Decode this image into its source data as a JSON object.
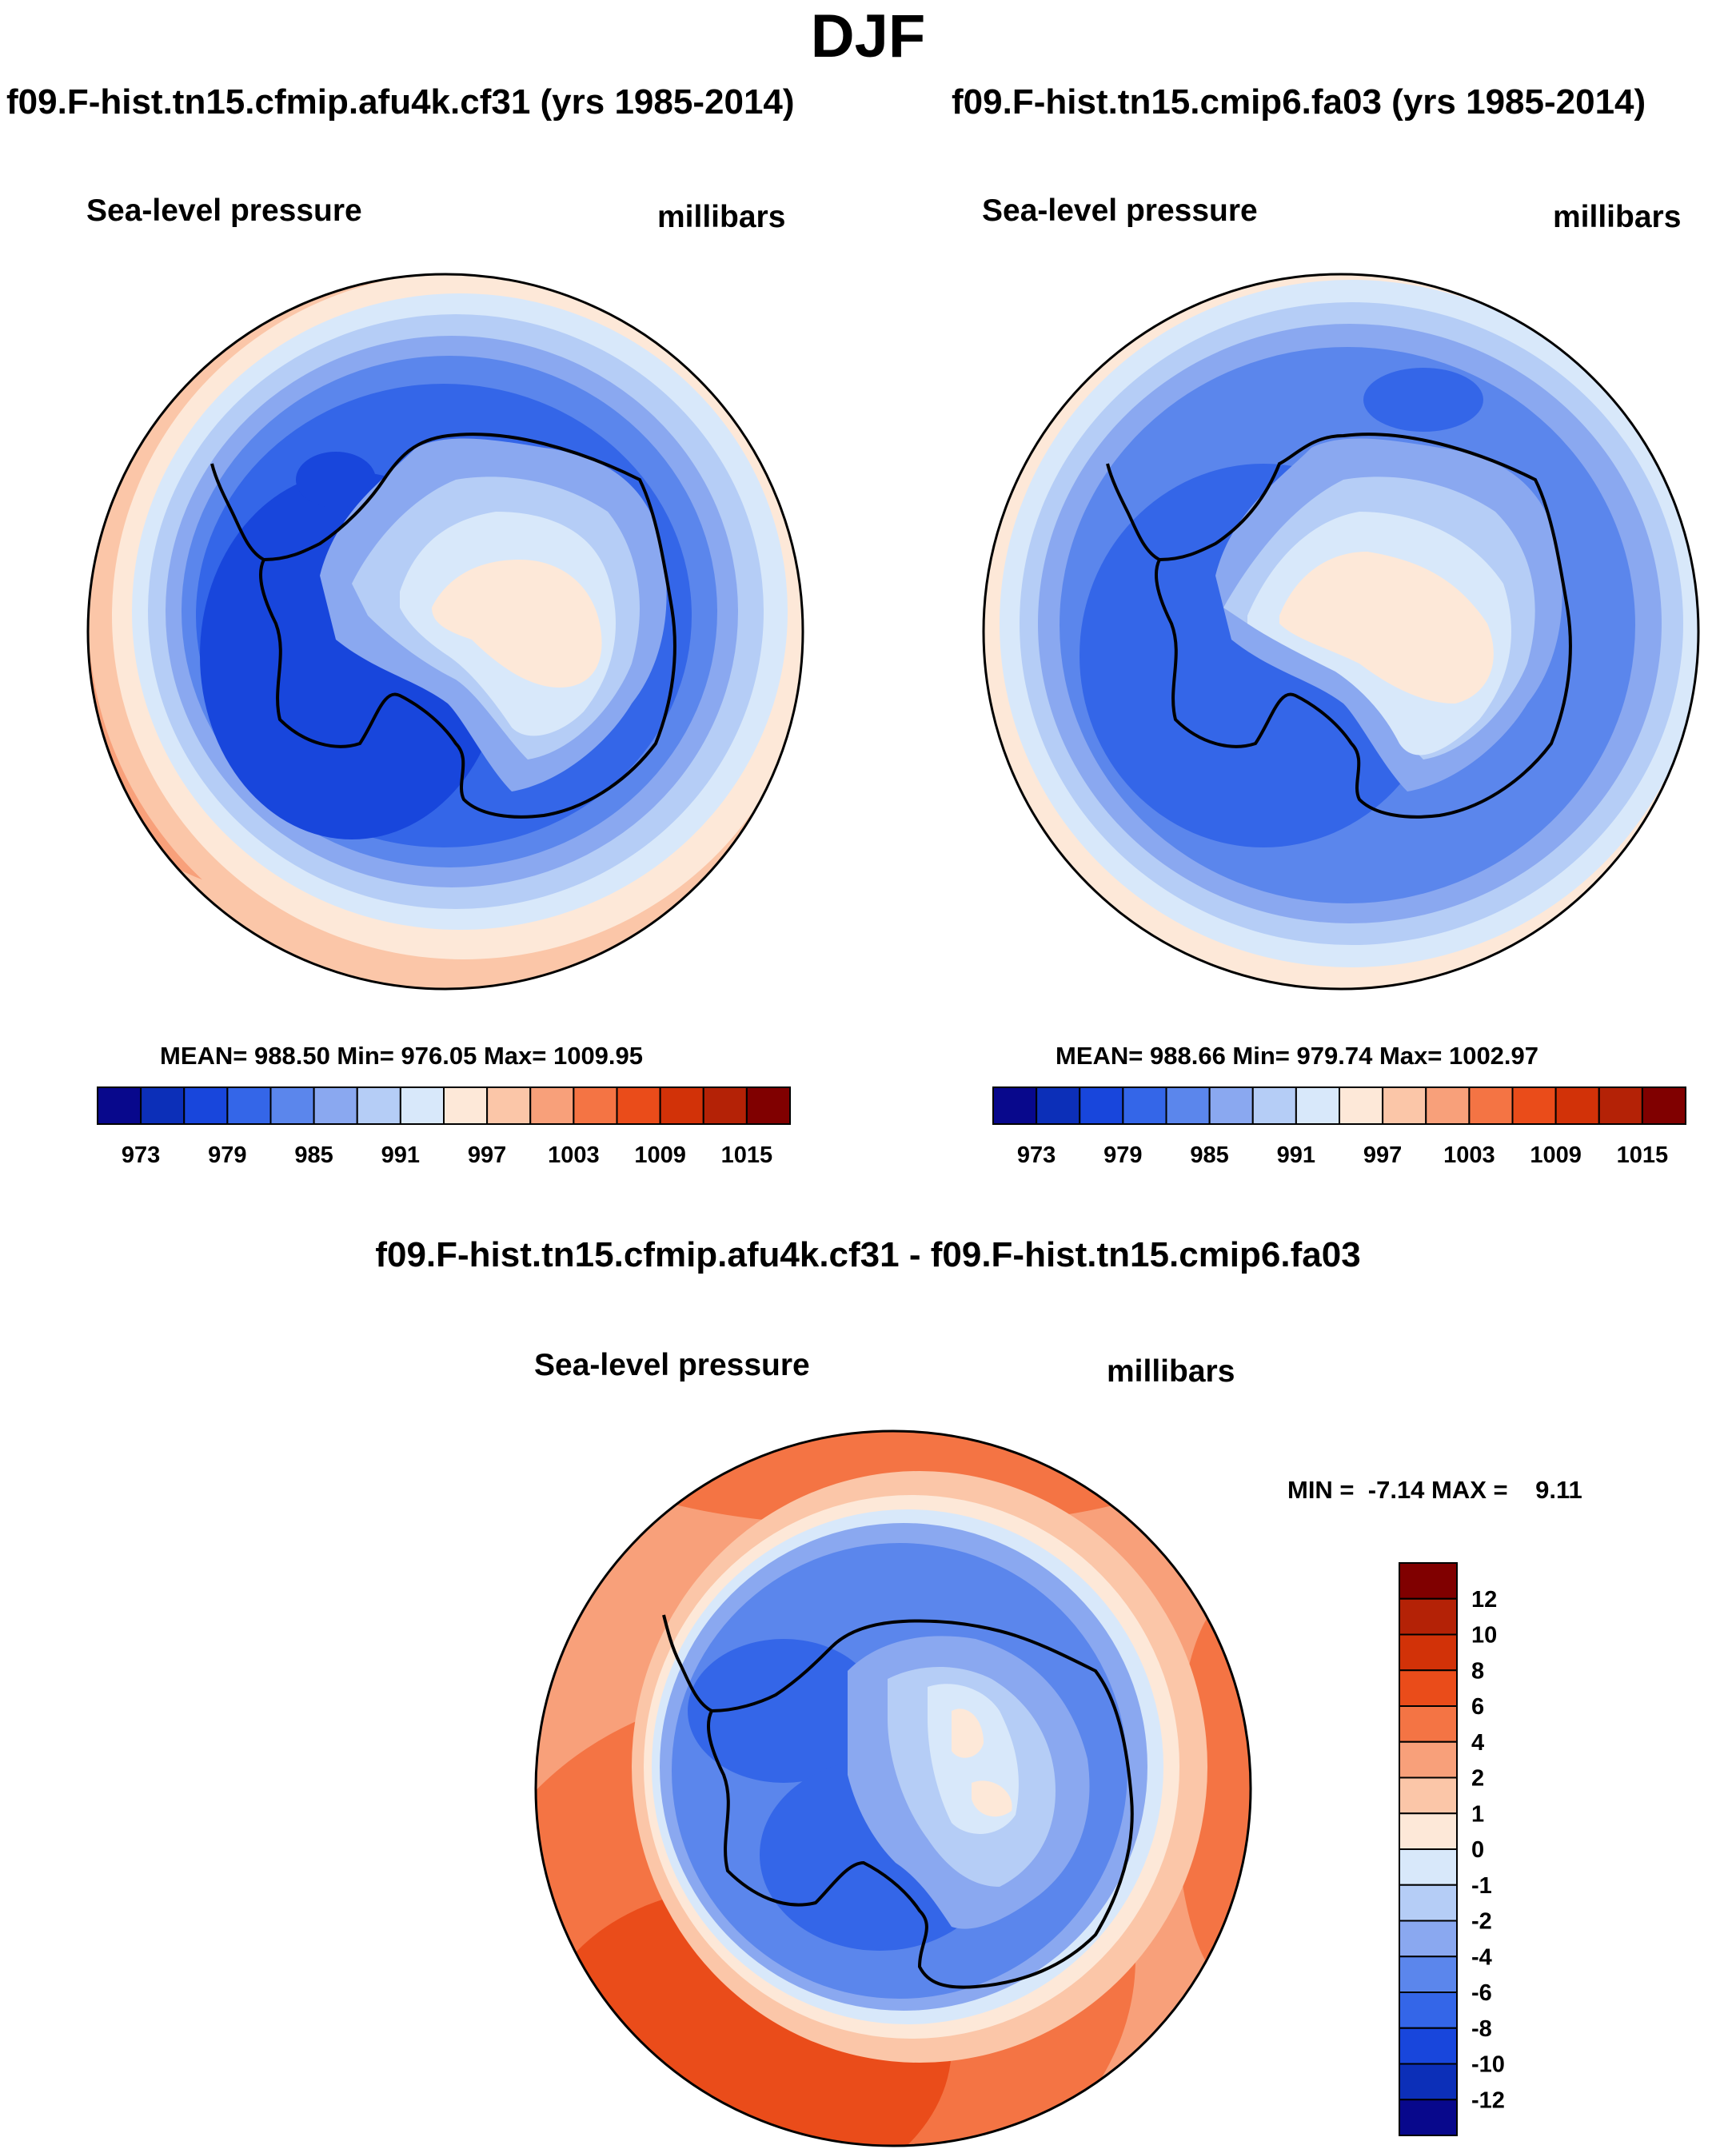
{
  "title": "DJF",
  "panels": {
    "left": {
      "case_title": "f09.F-hist.tn15.cfmip.afu4k.cf31 (yrs 1985-2014)",
      "field_label": "Sea-level pressure",
      "units": "millibars",
      "stats": "MEAN= 988.50  Min= 976.05  Max= 1009.95"
    },
    "right": {
      "case_title": "f09.F-hist.tn15.cmip6.fa03 (yrs 1985-2014)",
      "field_label": "Sea-level pressure",
      "units": "millibars",
      "stats": "MEAN= 988.66  Min= 979.74  Max= 1002.97"
    },
    "diff": {
      "case_title": "f09.F-hist.tn15.cfmip.afu4k.cf31 - f09.F-hist.tn15.cmip6.fa03",
      "field_label": "Sea-level pressure",
      "units": "millibars",
      "stats": "MIN =  -7.14 MAX =    9.11"
    }
  },
  "colorbar_abs": {
    "colors": [
      "#08088c",
      "#0c2fb8",
      "#1846dc",
      "#3466e8",
      "#5b86ec",
      "#8aa8f0",
      "#b5cdf6",
      "#d8e8fa",
      "#fde8d8",
      "#fbc6a8",
      "#f8a07a",
      "#f47444",
      "#ea4c1a",
      "#d23208",
      "#b42206",
      "#800000"
    ],
    "labels": [
      "973",
      "979",
      "985",
      "991",
      "997",
      "1003",
      "1009",
      "1015"
    ]
  },
  "colorbar_diff": {
    "colors": [
      "#800000",
      "#b42206",
      "#d23208",
      "#ea4c1a",
      "#f47444",
      "#f8a07a",
      "#fbc6a8",
      "#fde8d8",
      "#d8e8fa",
      "#b5cdf6",
      "#8aa8f0",
      "#5b86ec",
      "#3466e8",
      "#1846dc",
      "#0c2fb8",
      "#08088c"
    ],
    "labels": [
      "12",
      "10",
      "8",
      "6",
      "4",
      "2",
      "1",
      "0",
      "-1",
      "-2",
      "-4",
      "-6",
      "-8",
      "-10",
      "-12"
    ]
  }
}
